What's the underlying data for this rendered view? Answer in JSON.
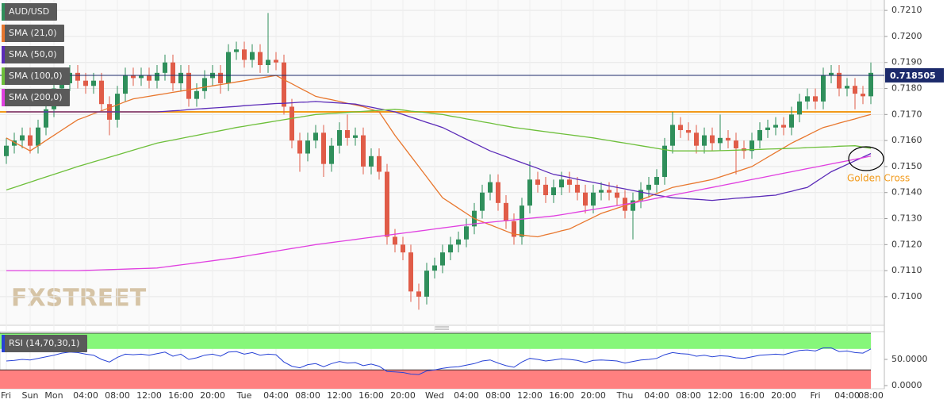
{
  "chart_data": {
    "type": "candlestick",
    "title": "AUD/USD",
    "up_color": "#2f8f5b",
    "down_color": "#e05c48",
    "categories": [
      "Fri",
      null,
      null,
      "Sun",
      null,
      null,
      "Mon",
      null,
      null,
      null,
      "04:00",
      null,
      null,
      null,
      "08:00",
      null,
      null,
      null,
      "12:00",
      null,
      null,
      null,
      "16:00",
      null,
      null,
      null,
      "20:00",
      null,
      null,
      null,
      "Tue",
      null,
      null,
      null,
      "04:00",
      null,
      null,
      null,
      "08:00",
      null,
      null,
      null,
      "12:00",
      null,
      null,
      null,
      "16:00",
      null,
      null,
      null,
      "20:00",
      null,
      null,
      null,
      "Wed",
      null,
      null,
      null,
      "04:00",
      null,
      null,
      null,
      "08:00",
      null,
      null,
      null,
      "12:00",
      null,
      null,
      null,
      "16:00",
      null,
      null,
      null,
      "20:00",
      null,
      null,
      null,
      "Thu",
      null,
      null,
      null,
      "04:00",
      null,
      null,
      null,
      "08:00",
      null,
      null,
      null,
      "12:00",
      null,
      null,
      null,
      "16:00",
      null,
      null,
      null,
      "20:00",
      null,
      null,
      null,
      "Fri",
      null,
      null,
      null,
      "04:00",
      null,
      null,
      "08:00"
    ],
    "open": [
      0.7154,
      0.7158,
      0.716,
      0.7162,
      0.7158,
      0.7165,
      0.7172,
      0.718,
      0.7182,
      0.7186,
      0.7183,
      0.7181,
      0.7183,
      0.7174,
      0.7168,
      0.7178,
      0.7185,
      0.7184,
      0.7185,
      0.7183,
      0.7186,
      0.719,
      0.7182,
      0.7186,
      0.7176,
      0.7179,
      0.7184,
      0.7186,
      0.7182,
      0.7194,
      0.7195,
      0.7191,
      0.7194,
      0.7189,
      0.7191,
      0.719,
      0.7173,
      0.716,
      0.7155,
      0.716,
      0.7163,
      0.7151,
      0.7158,
      0.7164,
      0.7161,
      0.7162,
      0.715,
      0.7154,
      0.7148,
      0.7123,
      0.712,
      0.7117,
      0.7102,
      0.71,
      0.711,
      0.7112,
      0.7117,
      0.712,
      0.7122,
      0.7127,
      0.7133,
      0.714,
      0.7144,
      0.7136,
      0.7129,
      0.7123,
      0.7135,
      0.7145,
      0.7143,
      0.7139,
      0.7142,
      0.7145,
      0.7143,
      0.714,
      0.7135,
      0.714,
      0.7141,
      0.714,
      0.7138,
      0.7133,
      0.7137,
      0.7141,
      0.7143,
      0.7146,
      0.7158,
      0.7166,
      0.7164,
      0.7163,
      0.7158,
      0.7162,
      0.7159,
      0.7161,
      0.716,
      0.7157,
      0.7156,
      0.716,
      0.7164,
      0.7165,
      0.7166,
      0.7165,
      0.717,
      0.7175,
      0.7177,
      0.7175,
      0.7185,
      0.7186,
      0.718,
      0.7181,
      0.7178,
      0.7177
    ],
    "high": [
      0.7161,
      0.7163,
      0.7165,
      0.7165,
      0.7168,
      0.7175,
      0.7186,
      0.7185,
      0.7189,
      0.7189,
      0.7186,
      0.7186,
      0.7186,
      0.7177,
      0.7181,
      0.7188,
      0.7188,
      0.7188,
      0.7188,
      0.7189,
      0.7193,
      0.7193,
      0.7189,
      0.7189,
      0.7182,
      0.7187,
      0.7189,
      0.7189,
      0.7197,
      0.7198,
      0.7198,
      0.7197,
      0.7197,
      0.7209,
      0.7194,
      0.7193,
      0.7176,
      0.7163,
      0.7163,
      0.7166,
      0.7166,
      0.7161,
      0.7167,
      0.717,
      0.7165,
      0.7165,
      0.7157,
      0.7157,
      0.7151,
      0.7126,
      0.7123,
      0.712,
      0.7105,
      0.7113,
      0.7115,
      0.712,
      0.7123,
      0.7125,
      0.713,
      0.7136,
      0.7143,
      0.7147,
      0.7147,
      0.7139,
      0.7132,
      0.7138,
      0.7152,
      0.7148,
      0.7146,
      0.7145,
      0.7148,
      0.7148,
      0.7146,
      0.7143,
      0.7143,
      0.7144,
      0.7144,
      0.7143,
      0.7141,
      0.714,
      0.7144,
      0.7146,
      0.7149,
      0.7161,
      0.7171,
      0.7169,
      0.7167,
      0.7166,
      0.7165,
      0.7165,
      0.717,
      0.7164,
      0.7163,
      0.716,
      0.7163,
      0.7167,
      0.7168,
      0.7169,
      0.7169,
      0.7173,
      0.7178,
      0.718,
      0.718,
      0.7188,
      0.7189,
      0.7189,
      0.7184,
      0.7184,
      0.7181,
      0.719
    ],
    "low": [
      0.7151,
      0.7155,
      0.7157,
      0.7155,
      0.7155,
      0.7162,
      0.7169,
      0.7177,
      0.7179,
      0.718,
      0.7178,
      0.7178,
      0.7171,
      0.7162,
      0.7165,
      0.7175,
      0.7181,
      0.7181,
      0.718,
      0.718,
      0.7183,
      0.7179,
      0.7179,
      0.7173,
      0.7173,
      0.7176,
      0.7181,
      0.7178,
      0.7179,
      0.7191,
      0.7188,
      0.7188,
      0.7186,
      0.7186,
      0.7187,
      0.717,
      0.7157,
      0.7148,
      0.7152,
      0.7157,
      0.7146,
      0.7148,
      0.7155,
      0.7158,
      0.7158,
      0.7147,
      0.7147,
      0.7145,
      0.712,
      0.7117,
      0.7114,
      0.7098,
      0.7095,
      0.7097,
      0.7107,
      0.7109,
      0.7114,
      0.7117,
      0.7119,
      0.7124,
      0.713,
      0.7137,
      0.7133,
      0.7126,
      0.712,
      0.712,
      0.7132,
      0.714,
      0.7136,
      0.7136,
      0.7139,
      0.714,
      0.7137,
      0.7132,
      0.7132,
      0.7137,
      0.7137,
      0.7135,
      0.713,
      0.7122,
      0.7134,
      0.7138,
      0.714,
      0.7143,
      0.7155,
      0.7161,
      0.716,
      0.7155,
      0.7155,
      0.7156,
      0.7156,
      0.7157,
      0.7147,
      0.7153,
      0.7153,
      0.7157,
      0.7161,
      0.7162,
      0.7162,
      0.7162,
      0.7167,
      0.7172,
      0.7172,
      0.7172,
      0.7182,
      0.7177,
      0.7177,
      0.7172,
      0.7174,
      0.7174
    ],
    "close": [
      0.7158,
      0.716,
      0.7162,
      0.7158,
      0.7165,
      0.7172,
      0.718,
      0.7182,
      0.7186,
      0.7183,
      0.7181,
      0.7183,
      0.7174,
      0.7168,
      0.7178,
      0.7185,
      0.7184,
      0.7185,
      0.7183,
      0.7186,
      0.719,
      0.7182,
      0.7186,
      0.7176,
      0.7179,
      0.7184,
      0.7186,
      0.7182,
      0.7194,
      0.7195,
      0.7191,
      0.7194,
      0.7189,
      0.7191,
      0.719,
      0.7173,
      0.716,
      0.7155,
      0.716,
      0.7163,
      0.7151,
      0.7158,
      0.7164,
      0.7161,
      0.7162,
      0.715,
      0.7154,
      0.7148,
      0.7123,
      0.712,
      0.7117,
      0.7102,
      0.71,
      0.711,
      0.7112,
      0.7117,
      0.712,
      0.7122,
      0.7127,
      0.7133,
      0.714,
      0.7144,
      0.7136,
      0.7129,
      0.7123,
      0.7135,
      0.7145,
      0.7143,
      0.7139,
      0.7142,
      0.7145,
      0.7143,
      0.714,
      0.7135,
      0.714,
      0.7141,
      0.714,
      0.7138,
      0.7133,
      0.7137,
      0.7141,
      0.7143,
      0.7146,
      0.7158,
      0.7166,
      0.7164,
      0.7163,
      0.7158,
      0.7162,
      0.7159,
      0.7161,
      0.716,
      0.7157,
      0.7156,
      0.716,
      0.7164,
      0.7165,
      0.7166,
      0.7165,
      0.717,
      0.7175,
      0.7177,
      0.7175,
      0.7185,
      0.7186,
      0.718,
      0.7181,
      0.7178,
      0.7177,
      0.7186
    ],
    "series": [
      {
        "name": "SMA (21,0)",
        "color": "#e8772e",
        "values": [
          0.7161,
          0.71593,
          0.71577,
          0.7156,
          0.7158,
          0.716,
          0.7162,
          0.7164,
          0.7166,
          0.7168,
          0.71691,
          0.71703,
          0.71714,
          0.71726,
          0.71737,
          0.71749,
          0.7176,
          0.71765,
          0.7177,
          0.71775,
          0.7178,
          0.71785,
          0.7179,
          0.71795,
          0.718,
          0.71805,
          0.7181,
          0.71815,
          0.7182,
          0.71825,
          0.7183,
          0.71835,
          0.7184,
          0.71845,
          0.7185,
          0.71834,
          0.71818,
          0.71802,
          0.71786,
          0.7177,
          0.71763,
          0.71757,
          0.7175,
          0.71743,
          0.71737,
          0.7173,
          0.7172,
          0.7171,
          0.71665,
          0.7162,
          0.7158,
          0.7154,
          0.715,
          0.7146,
          0.7142,
          0.7138,
          0.7136,
          0.7134,
          0.7132,
          0.713,
          0.71288,
          0.71276,
          0.71264,
          0.71252,
          0.7124,
          0.71237,
          0.71233,
          0.7123,
          0.71238,
          0.71245,
          0.71253,
          0.7126,
          0.71275,
          0.7129,
          0.71305,
          0.7132,
          0.7133,
          0.7134,
          0.7135,
          0.7136,
          0.71372,
          0.71384,
          0.71396,
          0.71408,
          0.7142,
          0.71426,
          0.71432,
          0.71438,
          0.71444,
          0.7145,
          0.7146,
          0.7147,
          0.7148,
          0.7149,
          0.715,
          0.71518,
          0.71536,
          0.71554,
          0.71572,
          0.7159,
          0.71605,
          0.7162,
          0.71635,
          0.7165,
          0.71658,
          0.71667,
          0.71675,
          0.71683,
          0.71692,
          0.717
        ]
      },
      {
        "name": "SMA (50,0)",
        "color": "#5b2bb8",
        "values": [
          0.7171,
          0.7171,
          0.7171,
          0.7171,
          0.7171,
          0.7171,
          0.7171,
          0.7171,
          0.7171,
          0.7171,
          0.7171,
          0.7171,
          0.7171,
          0.7171,
          0.7171,
          0.7171,
          0.7171,
          0.7171,
          0.7171,
          0.7171,
          0.71712,
          0.71714,
          0.71716,
          0.71719,
          0.71721,
          0.71723,
          0.71725,
          0.71727,
          0.71729,
          0.71731,
          0.71734,
          0.71736,
          0.71738,
          0.7174,
          0.71742,
          0.71743,
          0.71745,
          0.71747,
          0.71748,
          0.7175,
          0.71748,
          0.71746,
          0.71744,
          0.71742,
          0.7174,
          0.71734,
          0.71728,
          0.71722,
          0.71716,
          0.7171,
          0.717,
          0.7169,
          0.7168,
          0.7167,
          0.7166,
          0.7165,
          0.71635,
          0.7162,
          0.71605,
          0.7159,
          0.71575,
          0.7156,
          0.71549,
          0.71538,
          0.71526,
          0.71515,
          0.71504,
          0.71493,
          0.71481,
          0.7147,
          0.71464,
          0.71458,
          0.71451,
          0.71445,
          0.71439,
          0.71433,
          0.71426,
          0.7142,
          0.71414,
          0.71408,
          0.71402,
          0.71396,
          0.7139,
          0.71385,
          0.7138,
          0.71378,
          0.71376,
          0.71374,
          0.71372,
          0.7137,
          0.71373,
          0.71375,
          0.71378,
          0.7138,
          0.71383,
          0.71385,
          0.71388,
          0.7139,
          0.71398,
          0.71405,
          0.71413,
          0.7142,
          0.7144,
          0.7146,
          0.7148,
          0.71494,
          0.71508,
          0.71522,
          0.71536,
          0.7155
        ]
      },
      {
        "name": "SMA (100,0)",
        "color": "#6dbf3a",
        "values": [
          0.7141,
          0.7142,
          0.7143,
          0.7144,
          0.7145,
          0.7146,
          0.7147,
          0.7148,
          0.7149,
          0.715,
          0.71509,
          0.71518,
          0.71527,
          0.71536,
          0.71545,
          0.71554,
          0.71563,
          0.71572,
          0.71581,
          0.7159,
          0.71596,
          0.71602,
          0.71608,
          0.71614,
          0.7162,
          0.71626,
          0.71632,
          0.71638,
          0.71644,
          0.7165,
          0.71655,
          0.7166,
          0.71665,
          0.7167,
          0.71675,
          0.7168,
          0.71685,
          0.7169,
          0.71695,
          0.717,
          0.71702,
          0.71704,
          0.71706,
          0.71708,
          0.7171,
          0.71712,
          0.71714,
          0.71716,
          0.71718,
          0.7172,
          0.71717,
          0.71713,
          0.7171,
          0.71707,
          0.71703,
          0.717,
          0.71694,
          0.71689,
          0.71683,
          0.71678,
          0.71672,
          0.71667,
          0.71661,
          0.71656,
          0.7165,
          0.71646,
          0.71642,
          0.71638,
          0.71634,
          0.7163,
          0.71626,
          0.71622,
          0.71618,
          0.71614,
          0.7161,
          0.71605,
          0.716,
          0.71595,
          0.7159,
          0.71585,
          0.7158,
          0.71575,
          0.7157,
          0.71565,
          0.7156,
          0.7156,
          0.7156,
          0.7156,
          0.7156,
          0.7156,
          0.71561,
          0.71562,
          0.71563,
          0.71564,
          0.71565,
          0.71566,
          0.71567,
          0.71568,
          0.71569,
          0.7157,
          0.71571,
          0.71573,
          0.71574,
          0.71575,
          0.71576,
          0.71578,
          0.71579,
          0.7158,
          0.71575,
          0.7157
        ]
      },
      {
        "name": "SMA (200,0)",
        "color": "#e040e0",
        "values": [
          0.711,
          0.711,
          0.711,
          0.711,
          0.711,
          0.711,
          0.711,
          0.711,
          0.711,
          0.711,
          0.71101,
          0.71102,
          0.71103,
          0.71104,
          0.71105,
          0.71106,
          0.71107,
          0.71108,
          0.71109,
          0.7111,
          0.71114,
          0.71118,
          0.71122,
          0.71126,
          0.7113,
          0.71134,
          0.71138,
          0.71142,
          0.71146,
          0.7115,
          0.71155,
          0.7116,
          0.71165,
          0.7117,
          0.71175,
          0.7118,
          0.71185,
          0.7119,
          0.71195,
          0.712,
          0.71204,
          0.71208,
          0.71212,
          0.71216,
          0.7122,
          0.71224,
          0.71228,
          0.71232,
          0.71236,
          0.7124,
          0.71244,
          0.71248,
          0.71252,
          0.71256,
          0.7126,
          0.71264,
          0.71268,
          0.71272,
          0.71276,
          0.7128,
          0.71283,
          0.71286,
          0.71289,
          0.71292,
          0.71295,
          0.71298,
          0.71301,
          0.71304,
          0.71307,
          0.7131,
          0.71315,
          0.7132,
          0.71325,
          0.7133,
          0.71335,
          0.7134,
          0.71345,
          0.7135,
          0.71355,
          0.7136,
          0.71366,
          0.71372,
          0.71378,
          0.71384,
          0.7139,
          0.71396,
          0.71402,
          0.71408,
          0.71414,
          0.7142,
          0.71426,
          0.71432,
          0.71438,
          0.71444,
          0.7145,
          0.71456,
          0.71462,
          0.71468,
          0.71474,
          0.7148,
          0.71486,
          0.71492,
          0.71498,
          0.71504,
          0.7151,
          0.71516,
          0.71522,
          0.71528,
          0.71534,
          0.7154
        ]
      }
    ],
    "ylim": [
      0.7089,
      0.7214
    ],
    "yticks": [
      {
        "value": 0.71,
        "label": "0.7100"
      },
      {
        "value": 0.711,
        "label": "0.7110"
      },
      {
        "value": 0.712,
        "label": "0.7120"
      },
      {
        "value": 0.713,
        "label": "0.7130"
      },
      {
        "value": 0.714,
        "label": "0.7140"
      },
      {
        "value": 0.715,
        "label": "0.7150"
      },
      {
        "value": 0.716,
        "label": "0.7160"
      },
      {
        "value": 0.717,
        "label": "0.7170"
      },
      {
        "value": 0.718,
        "label": "0.7180"
      },
      {
        "value": 0.719,
        "label": "0.7190"
      },
      {
        "value": 0.72,
        "label": "0.7200"
      },
      {
        "value": 0.721,
        "label": "0.7210"
      }
    ],
    "grid": true,
    "price_line": 0.718505,
    "price_line_color": "#1c2a6b",
    "level": 0.7171,
    "level_color": "#f29a1a",
    "annotation": "Golden Cross",
    "annotation_color": "#f29a1a",
    "watermark": "FXSTREET",
    "rsi": {
      "label": "RSI (14,70,30,1)",
      "color": "#2742d6",
      "ylim": [
        0,
        100
      ],
      "yticks": [
        {
          "value": 50,
          "label": "50.0000"
        },
        {
          "value": 0,
          "label": "0.0000"
        }
      ],
      "zones": [
        {
          "from": 70,
          "to": 100,
          "color": "#86f77a"
        },
        {
          "from": 0,
          "to": 30,
          "color": "#ff8080"
        }
      ],
      "values": [
        47,
        48,
        50,
        49,
        52,
        55,
        58,
        62,
        64,
        63,
        60,
        58,
        50,
        45,
        54,
        60,
        59,
        60,
        58,
        61,
        64,
        56,
        60,
        50,
        53,
        58,
        60,
        56,
        64,
        65,
        60,
        63,
        58,
        60,
        59,
        45,
        37,
        34,
        40,
        42,
        36,
        42,
        46,
        43,
        44,
        38,
        41,
        37,
        27,
        26,
        25,
        22,
        21,
        28,
        30,
        33,
        35,
        36,
        39,
        42,
        47,
        49,
        43,
        38,
        35,
        45,
        52,
        50,
        47,
        49,
        51,
        50,
        48,
        44,
        48,
        49,
        48,
        47,
        43,
        46,
        49,
        50,
        52,
        59,
        63,
        61,
        60,
        56,
        58,
        55,
        57,
        56,
        53,
        52,
        55,
        58,
        59,
        60,
        59,
        63,
        67,
        68,
        66,
        72,
        72,
        65,
        66,
        63,
        62,
        70
      ]
    }
  }
}
